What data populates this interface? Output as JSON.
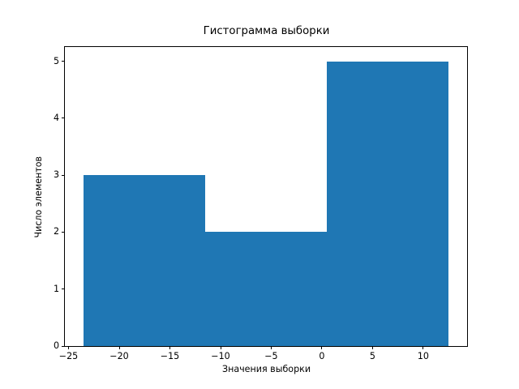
{
  "chart_data": {
    "type": "bar",
    "subtype": "histogram",
    "title": "Гистограмма выборки",
    "xlabel": "Значения выборки",
    "ylabel": "Число элементов",
    "bin_edges": [
      -23.56,
      -11.53,
      0.5,
      12.53
    ],
    "counts": [
      3,
      2,
      5
    ],
    "xticks": [
      -25,
      -20,
      -15,
      -10,
      -5,
      0,
      5,
      10
    ],
    "yticks": [
      0,
      1,
      2,
      3,
      4,
      5
    ],
    "xlim": [
      -25.36,
      14.33
    ],
    "ylim": [
      0,
      5.25
    ],
    "grid": false,
    "legend_position": "none",
    "bar_color": "#1f77b4",
    "axis_color": "#000000",
    "background_color": "#ffffff"
  }
}
